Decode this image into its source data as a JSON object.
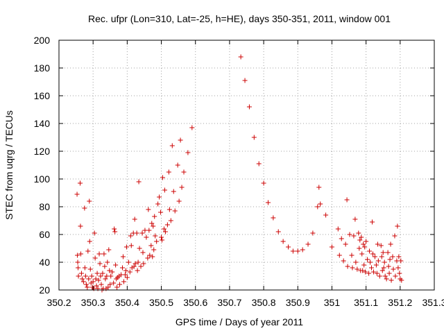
{
  "chart_data": {
    "type": "scatter",
    "title": "Rec. ufpr (Lon=310, Lat=-25, h=HE), days 350-351, 2011, window 001",
    "xlabel": "GPS time / Days of year 2011",
    "ylabel": "STEC from uqrg / TECUs",
    "xlim": [
      350.2,
      351.3
    ],
    "ylim": [
      20,
      200
    ],
    "xticks": [
      "350.2",
      "350.3",
      "350.4",
      "350.5",
      "350.6",
      "350.7",
      "350.8",
      "350.9",
      "351",
      "351.1",
      "351.2",
      "351.3"
    ],
    "yticks": [
      "20",
      "40",
      "60",
      "80",
      "100",
      "120",
      "140",
      "160",
      "180",
      "200"
    ],
    "grid": true,
    "marker": "+",
    "color": "#cc0000",
    "series": [
      {
        "name": "STEC",
        "points": [
          [
            350.253,
            89
          ],
          [
            350.254,
            45
          ],
          [
            350.255,
            40
          ],
          [
            350.256,
            36
          ],
          [
            350.257,
            30
          ],
          [
            350.262,
            97
          ],
          [
            350.263,
            66
          ],
          [
            350.264,
            46
          ],
          [
            350.266,
            32
          ],
          [
            350.268,
            28
          ],
          [
            350.272,
            26
          ],
          [
            350.275,
            79
          ],
          [
            350.276,
            36
          ],
          [
            350.278,
            30
          ],
          [
            350.28,
            24
          ],
          [
            350.283,
            22
          ],
          [
            350.285,
            48
          ],
          [
            350.287,
            28
          ],
          [
            350.289,
            84
          ],
          [
            350.29,
            55
          ],
          [
            350.292,
            35
          ],
          [
            350.294,
            25
          ],
          [
            350.296,
            30
          ],
          [
            350.298,
            22
          ],
          [
            350.3,
            26
          ],
          [
            350.302,
            21
          ],
          [
            350.304,
            61
          ],
          [
            350.306,
            43
          ],
          [
            350.308,
            28
          ],
          [
            350.31,
            23
          ],
          [
            350.312,
            32
          ],
          [
            350.314,
            21
          ],
          [
            350.316,
            27
          ],
          [
            350.318,
            46
          ],
          [
            350.32,
            39
          ],
          [
            350.322,
            30
          ],
          [
            350.324,
            24
          ],
          [
            350.326,
            20
          ],
          [
            350.328,
            32
          ],
          [
            350.33,
            21
          ],
          [
            350.332,
            46
          ],
          [
            350.334,
            37
          ],
          [
            350.336,
            28
          ],
          [
            350.338,
            21
          ],
          [
            350.34,
            30
          ],
          [
            350.342,
            40
          ],
          [
            350.344,
            22
          ],
          [
            350.346,
            49
          ],
          [
            350.348,
            34
          ],
          [
            350.35,
            24
          ],
          [
            350.352,
            30
          ],
          [
            350.356,
            33
          ],
          [
            350.36,
            25
          ],
          [
            350.362,
            64
          ],
          [
            350.364,
            62
          ],
          [
            350.366,
            38
          ],
          [
            350.368,
            28
          ],
          [
            350.37,
            22
          ],
          [
            350.372,
            29
          ],
          [
            350.376,
            30
          ],
          [
            350.378,
            24
          ],
          [
            350.382,
            31
          ],
          [
            350.386,
            36
          ],
          [
            350.388,
            44
          ],
          [
            350.39,
            26
          ],
          [
            350.394,
            31
          ],
          [
            350.396,
            34
          ],
          [
            350.398,
            51
          ],
          [
            350.4,
            29
          ],
          [
            350.404,
            40
          ],
          [
            350.408,
            33
          ],
          [
            350.41,
            59
          ],
          [
            350.412,
            52
          ],
          [
            350.414,
            36
          ],
          [
            350.418,
            61
          ],
          [
            350.42,
            37
          ],
          [
            350.422,
            71
          ],
          [
            350.424,
            39
          ],
          [
            350.428,
            61
          ],
          [
            350.43,
            34
          ],
          [
            350.432,
            40
          ],
          [
            350.434,
            98
          ],
          [
            350.436,
            50
          ],
          [
            350.44,
            37
          ],
          [
            350.444,
            61
          ],
          [
            350.446,
            47
          ],
          [
            350.448,
            39
          ],
          [
            350.452,
            63
          ],
          [
            350.456,
            58
          ],
          [
            350.46,
            43
          ],
          [
            350.462,
            78
          ],
          [
            350.464,
            63
          ],
          [
            350.466,
            45
          ],
          [
            350.47,
            52
          ],
          [
            350.472,
            68
          ],
          [
            350.474,
            44
          ],
          [
            350.476,
            66
          ],
          [
            350.478,
            49
          ],
          [
            350.48,
            73
          ],
          [
            350.482,
            59
          ],
          [
            350.486,
            55
          ],
          [
            350.49,
            82
          ],
          [
            350.494,
            87
          ],
          [
            350.498,
            76
          ],
          [
            350.5,
            58
          ],
          [
            350.502,
            56
          ],
          [
            350.504,
            101
          ],
          [
            350.508,
            64
          ],
          [
            350.51,
            92
          ],
          [
            350.512,
            62
          ],
          [
            350.518,
            67
          ],
          [
            350.522,
            105
          ],
          [
            350.524,
            78
          ],
          [
            350.528,
            70
          ],
          [
            350.532,
            124
          ],
          [
            350.536,
            91
          ],
          [
            350.54,
            77
          ],
          [
            350.548,
            110
          ],
          [
            350.552,
            84
          ],
          [
            350.556,
            128
          ],
          [
            350.56,
            94
          ],
          [
            350.566,
            105
          ],
          [
            350.578,
            119
          ],
          [
            350.59,
            137
          ],
          [
            350.733,
            188
          ],
          [
            350.745,
            171
          ],
          [
            350.758,
            152
          ],
          [
            350.772,
            130
          ],
          [
            350.786,
            111
          ],
          [
            350.8,
            97
          ],
          [
            350.813,
            83
          ],
          [
            350.828,
            72
          ],
          [
            350.843,
            62
          ],
          [
            350.857,
            55
          ],
          [
            350.872,
            51
          ],
          [
            350.886,
            48
          ],
          [
            350.9,
            48
          ],
          [
            350.914,
            49
          ],
          [
            350.93,
            53
          ],
          [
            350.944,
            61
          ],
          [
            350.958,
            80
          ],
          [
            350.962,
            94
          ],
          [
            350.966,
            82
          ],
          [
            350.982,
            74
          ],
          [
            351.0,
            51
          ],
          [
            351.018,
            64
          ],
          [
            351.022,
            45
          ],
          [
            351.028,
            57
          ],
          [
            351.034,
            41
          ],
          [
            351.04,
            53
          ],
          [
            351.044,
            85
          ],
          [
            351.046,
            37
          ],
          [
            351.052,
            60
          ],
          [
            351.058,
            45
          ],
          [
            351.06,
            36
          ],
          [
            351.064,
            59
          ],
          [
            351.068,
            71
          ],
          [
            351.07,
            40
          ],
          [
            351.074,
            35
          ],
          [
            351.078,
            61
          ],
          [
            351.08,
            50
          ],
          [
            351.082,
            56
          ],
          [
            351.084,
            34
          ],
          [
            351.086,
            58
          ],
          [
            351.088,
            46
          ],
          [
            351.09,
            34
          ],
          [
            351.092,
            53
          ],
          [
            351.094,
            38
          ],
          [
            351.096,
            51
          ],
          [
            351.098,
            33
          ],
          [
            351.1,
            55
          ],
          [
            351.104,
            42
          ],
          [
            351.108,
            32
          ],
          [
            351.11,
            48
          ],
          [
            351.112,
            40
          ],
          [
            351.116,
            36
          ],
          [
            351.118,
            69
          ],
          [
            351.12,
            46
          ],
          [
            351.122,
            33
          ],
          [
            351.126,
            44
          ],
          [
            351.13,
            38
          ],
          [
            351.132,
            32
          ],
          [
            351.134,
            53
          ],
          [
            351.136,
            41
          ],
          [
            351.14,
            30
          ],
          [
            351.144,
            52
          ],
          [
            351.146,
            44
          ],
          [
            351.148,
            34
          ],
          [
            351.15,
            47
          ],
          [
            351.152,
            36
          ],
          [
            351.154,
            40
          ],
          [
            351.156,
            30
          ],
          [
            351.16,
            28
          ],
          [
            351.164,
            47
          ],
          [
            351.166,
            37
          ],
          [
            351.168,
            32
          ],
          [
            351.17,
            42
          ],
          [
            351.172,
            53
          ],
          [
            351.174,
            27
          ],
          [
            351.178,
            44
          ],
          [
            351.18,
            35
          ],
          [
            351.184,
            59
          ],
          [
            351.186,
            30
          ],
          [
            351.19,
            41
          ],
          [
            351.192,
            66
          ],
          [
            351.194,
            36
          ],
          [
            351.196,
            44
          ],
          [
            351.198,
            32
          ],
          [
            351.2,
            28
          ],
          [
            351.202,
            41
          ],
          [
            351.204,
            27
          ]
        ]
      }
    ]
  }
}
